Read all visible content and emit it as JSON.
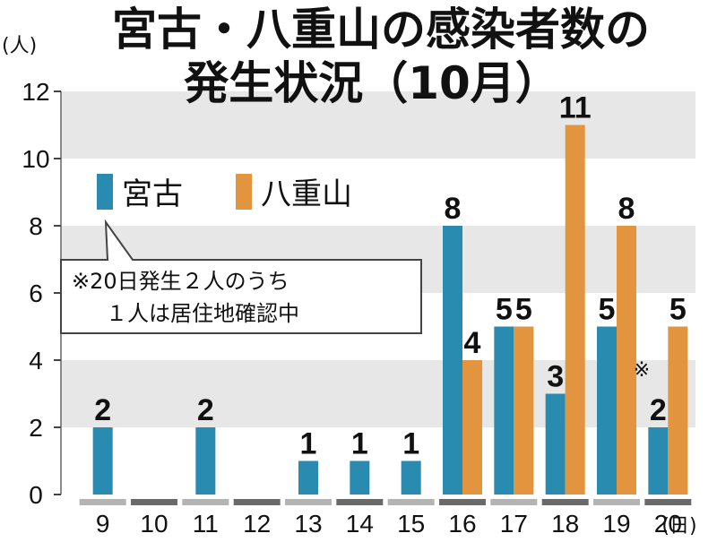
{
  "chart_data": {
    "type": "bar",
    "title_line1": "宮古・八重山の感染者数の",
    "title_line2": "発生状況（10月）",
    "y_unit": "(人)",
    "x_unit": "(日)",
    "ylim": [
      0,
      12
    ],
    "y_ticks": [
      "0",
      "2",
      "4",
      "6",
      "8",
      "10",
      "12"
    ],
    "categories": [
      "9",
      "10",
      "11",
      "12",
      "13",
      "14",
      "15",
      "16",
      "17",
      "18",
      "19",
      "20"
    ],
    "series": [
      {
        "name": "宮古",
        "color": "#2a8bb0",
        "values": [
          2,
          null,
          2,
          null,
          1,
          1,
          1,
          8,
          5,
          3,
          5,
          2
        ]
      },
      {
        "name": "八重山",
        "color": "#e2953e",
        "values": [
          null,
          null,
          null,
          null,
          null,
          null,
          null,
          4,
          5,
          11,
          8,
          5
        ]
      }
    ],
    "grid_bands": true,
    "legend_position": "top-left",
    "annotation_mark": "※",
    "annotation_lines": [
      "※20日発生２人のうち",
      "１人は居住地確認中"
    ]
  }
}
